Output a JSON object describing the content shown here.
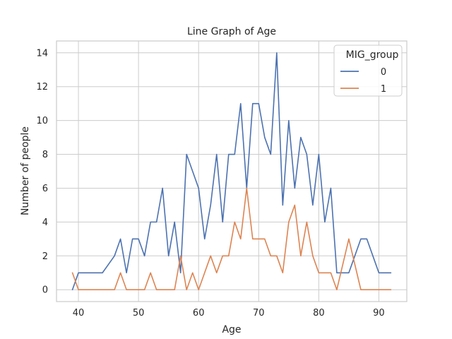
{
  "chart_data": {
    "type": "line",
    "title": "Line Graph of Age",
    "xlabel": "Age",
    "ylabel": "Number of people",
    "xlim": [
      36.35,
      94.65
    ],
    "ylim": [
      -0.7,
      14.7
    ],
    "xticks": [
      40,
      50,
      60,
      70,
      80,
      90
    ],
    "yticks": [
      0,
      2,
      4,
      6,
      8,
      10,
      12,
      14
    ],
    "grid": true,
    "legend": {
      "title": "MIG_group",
      "placement": "top-right"
    },
    "series": [
      {
        "name": "0",
        "color": "#4c72b0",
        "points": [
          [
            39,
            0
          ],
          [
            40,
            1
          ],
          [
            41,
            1
          ],
          [
            42,
            1
          ],
          [
            43,
            1
          ],
          [
            44,
            1
          ],
          [
            45,
            1.5
          ],
          [
            46,
            2
          ],
          [
            47,
            3
          ],
          [
            48,
            1
          ],
          [
            49,
            3
          ],
          [
            50,
            3
          ],
          [
            51,
            2
          ],
          [
            52,
            4
          ],
          [
            53,
            4
          ],
          [
            54,
            6
          ],
          [
            55,
            2
          ],
          [
            56,
            4
          ],
          [
            57,
            1
          ],
          [
            58,
            8
          ],
          [
            59,
            7
          ],
          [
            60,
            6
          ],
          [
            61,
            3
          ],
          [
            62,
            5
          ],
          [
            63,
            8
          ],
          [
            64,
            4
          ],
          [
            65,
            8
          ],
          [
            66,
            8
          ],
          [
            67,
            11
          ],
          [
            68,
            6
          ],
          [
            69,
            11
          ],
          [
            70,
            11
          ],
          [
            71,
            9
          ],
          [
            72,
            8
          ],
          [
            73,
            14
          ],
          [
            74,
            5
          ],
          [
            75,
            10
          ],
          [
            76,
            6
          ],
          [
            77,
            9
          ],
          [
            78,
            8
          ],
          [
            79,
            5
          ],
          [
            80,
            8
          ],
          [
            81,
            4
          ],
          [
            82,
            6
          ],
          [
            83,
            1
          ],
          [
            84,
            1
          ],
          [
            85,
            1
          ],
          [
            86,
            2
          ],
          [
            87,
            3
          ],
          [
            88,
            3
          ],
          [
            89,
            2
          ],
          [
            90,
            1
          ],
          [
            91,
            1
          ],
          [
            92,
            1
          ]
        ]
      },
      {
        "name": "1",
        "color": "#dd8452",
        "points": [
          [
            39,
            1
          ],
          [
            40,
            0
          ],
          [
            41,
            0
          ],
          [
            42,
            0
          ],
          [
            43,
            0
          ],
          [
            44,
            0
          ],
          [
            45,
            0
          ],
          [
            46,
            0
          ],
          [
            47,
            1
          ],
          [
            48,
            0
          ],
          [
            49,
            0
          ],
          [
            50,
            0
          ],
          [
            51,
            0
          ],
          [
            52,
            1
          ],
          [
            53,
            0
          ],
          [
            54,
            0
          ],
          [
            55,
            0
          ],
          [
            56,
            0
          ],
          [
            57,
            2
          ],
          [
            58,
            0
          ],
          [
            59,
            1
          ],
          [
            60,
            0
          ],
          [
            61,
            1
          ],
          [
            62,
            2
          ],
          [
            63,
            1
          ],
          [
            64,
            2
          ],
          [
            65,
            2
          ],
          [
            66,
            4
          ],
          [
            67,
            3
          ],
          [
            68,
            6
          ],
          [
            69,
            3
          ],
          [
            70,
            3
          ],
          [
            71,
            3
          ],
          [
            72,
            2
          ],
          [
            73,
            2
          ],
          [
            74,
            1
          ],
          [
            75,
            4
          ],
          [
            76,
            5
          ],
          [
            77,
            2
          ],
          [
            78,
            4
          ],
          [
            79,
            2
          ],
          [
            80,
            1
          ],
          [
            81,
            1
          ],
          [
            82,
            1
          ],
          [
            83,
            0
          ],
          [
            84,
            1.5
          ],
          [
            85,
            3
          ],
          [
            86,
            1.5
          ],
          [
            87,
            0
          ],
          [
            88,
            0
          ],
          [
            89,
            0
          ],
          [
            90,
            0
          ],
          [
            91,
            0
          ],
          [
            92,
            0
          ]
        ]
      }
    ]
  }
}
